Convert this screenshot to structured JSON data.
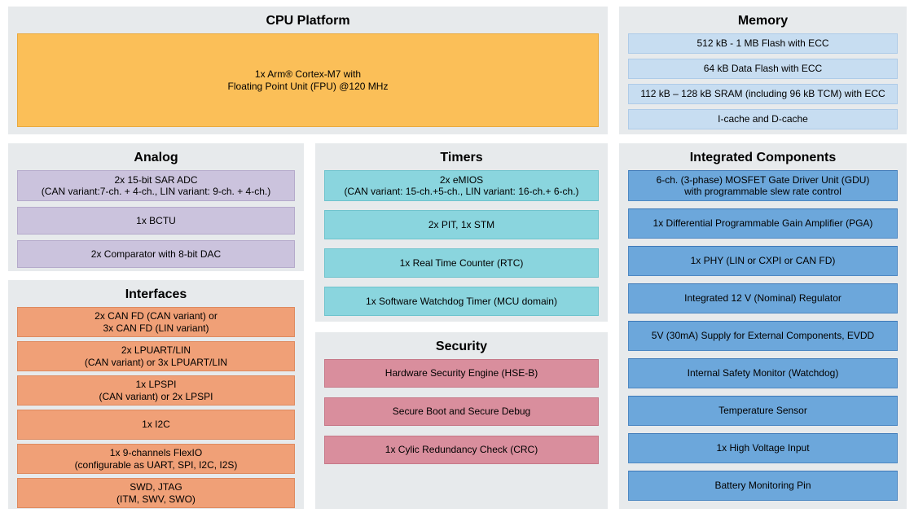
{
  "colors": {
    "panel_bg": "#E7EAEC",
    "cpu_block": "#FBBF58",
    "memory_row": "#C7DDF1",
    "analog_row": "#CBC3DD",
    "interfaces_row": "#F0A077",
    "timers_row": "#8AD5DE",
    "security_row": "#D98E9D",
    "integrated_row": "#6CA7DB"
  },
  "sections": {
    "cpu_platform": {
      "title": "CPU Platform",
      "block": "1x Arm® Cortex-M7 with\nFloating Point Unit (FPU) @120 MHz"
    },
    "memory": {
      "title": "Memory",
      "items": [
        "512 kB - 1 MB Flash with ECC",
        "64 kB Data Flash with ECC",
        "112 kB – 128 kB SRAM (including 96 kB TCM) with ECC",
        "I-cache and D-cache"
      ]
    },
    "analog": {
      "title": "Analog",
      "items": [
        "2x 15-bit SAR ADC\n(CAN variant:7-ch. + 4-ch., LIN variant: 9-ch. + 4-ch.)",
        "1x BCTU",
        "2x Comparator with 8-bit DAC"
      ]
    },
    "interfaces": {
      "title": "Interfaces",
      "items": [
        "2x CAN FD (CAN variant) or\n3x CAN FD (LIN variant)",
        "2x LPUART/LIN\n(CAN variant) or 3x LPUART/LIN",
        "1x LPSPI\n(CAN variant) or 2x LPSPI",
        "1x I2C",
        "1x 9-channels FlexIO\n(configurable as UART, SPI, I2C, I2S)",
        "SWD, JTAG\n(ITM, SWV, SWO)"
      ]
    },
    "timers": {
      "title": "Timers",
      "items": [
        "2x eMIOS\n(CAN variant: 15-ch.+5-ch., LIN variant: 16-ch.+ 6-ch.)",
        "2x PIT, 1x STM",
        "1x Real Time Counter (RTC)",
        "1x Software Watchdog Timer (MCU domain)"
      ]
    },
    "security": {
      "title": "Security",
      "items": [
        "Hardware Security Engine (HSE-B)",
        "Secure Boot and Secure Debug",
        "1x Cylic Redundancy Check (CRC)"
      ]
    },
    "integrated_components": {
      "title": "Integrated Components",
      "items": [
        "6-ch. (3-phase) MOSFET Gate Driver Unit (GDU)\nwith programmable slew rate control",
        "1x Differential Programmable Gain Amplifier (PGA)",
        "1x PHY (LIN or CXPI or CAN FD)",
        "Integrated 12 V (Nominal) Regulator",
        "5V (30mA) Supply for External Components, EVDD",
        "Internal Safety Monitor (Watchdog)",
        "Temperature Sensor",
        "1x High Voltage Input",
        "Battery Monitoring Pin"
      ]
    }
  }
}
